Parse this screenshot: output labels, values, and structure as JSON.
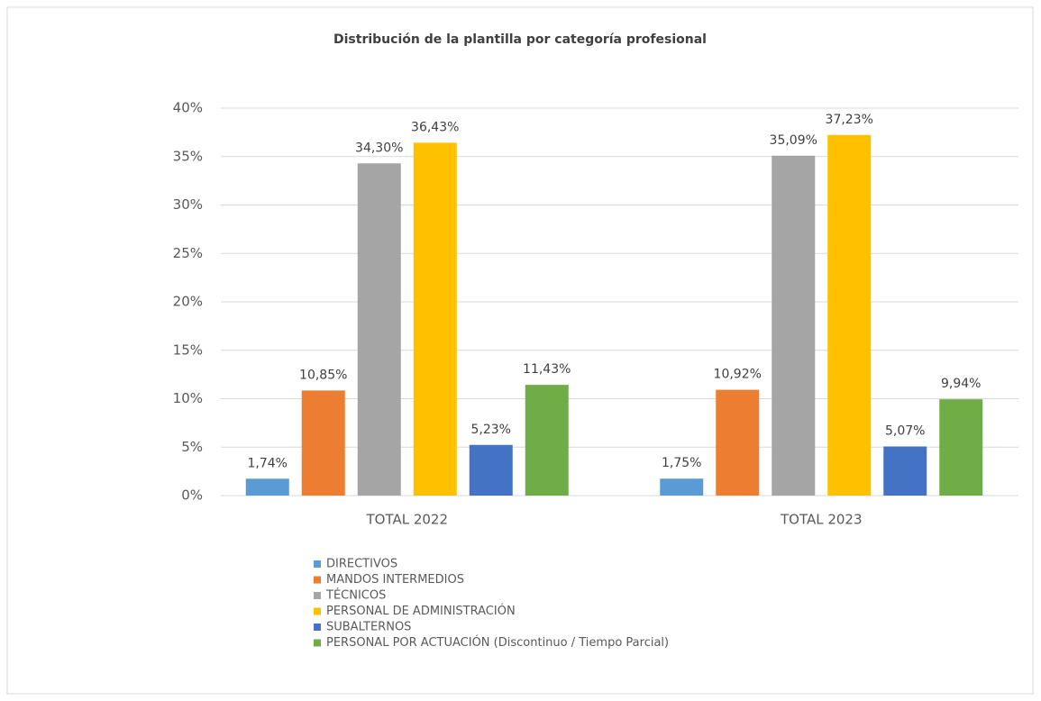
{
  "chart_data": {
    "type": "bar",
    "title": "Distribución de la plantilla por categoría profesional",
    "categories": [
      "TOTAL 2022",
      "TOTAL 2023"
    ],
    "series": [
      {
        "name": "DIRECTIVOS",
        "color": "#5b9bd5",
        "values": [
          1.74,
          1.75
        ],
        "value_labels": [
          "1,74%",
          "1,75%"
        ]
      },
      {
        "name": "MANDOS INTERMEDIOS",
        "color": "#ed7d31",
        "values": [
          10.85,
          10.92
        ],
        "value_labels": [
          "10,85%",
          "10,92%"
        ]
      },
      {
        "name": "TÉCNICOS",
        "color": "#a5a5a5",
        "values": [
          34.3,
          35.09
        ],
        "value_labels": [
          "34,30%",
          "35,09%"
        ]
      },
      {
        "name": "PERSONAL DE ADMINISTRACIÓN",
        "color": "#ffc000",
        "values": [
          36.43,
          37.23
        ],
        "value_labels": [
          "36,43%",
          "37,23%"
        ]
      },
      {
        "name": "SUBALTERNOS",
        "color": "#4472c4",
        "values": [
          5.23,
          5.07
        ],
        "value_labels": [
          "5,23%",
          "5,07%"
        ]
      },
      {
        "name": "PERSONAL POR ACTUACIÓN (Discontinuo / Tiempo Parcial)",
        "color": "#70ad47",
        "values": [
          11.43,
          9.94
        ],
        "value_labels": [
          "11,43%",
          "9,94%"
        ]
      }
    ],
    "ylim": [
      0,
      40
    ],
    "yticks": [
      {
        "value": 0,
        "label": "0%"
      },
      {
        "value": 5,
        "label": "5%"
      },
      {
        "value": 10,
        "label": "10%"
      },
      {
        "value": 15,
        "label": "15%"
      },
      {
        "value": 20,
        "label": "20%"
      },
      {
        "value": 25,
        "label": "25%"
      },
      {
        "value": 30,
        "label": "30%"
      },
      {
        "value": 35,
        "label": "35%"
      },
      {
        "value": 40,
        "label": "40%"
      }
    ],
    "grid": true,
    "legend": "bottom"
  }
}
